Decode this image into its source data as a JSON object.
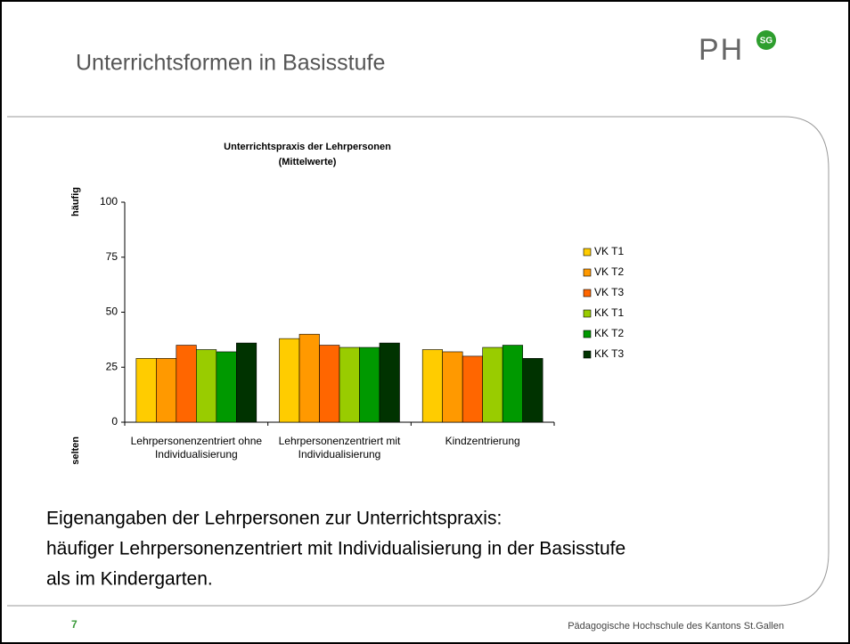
{
  "slide_title": "Unterrichtsformen in Basisstufe",
  "logo": {
    "text": "PH",
    "badge": "SG"
  },
  "chart_data": {
    "type": "bar",
    "title": [
      "Unterrichtspraxis der Lehrpersonen",
      "(Mittelwerte)"
    ],
    "y_label_top": "häufig",
    "y_label_bottom": "selten",
    "categories": [
      "Lehrpersonenzentriert ohne Individualisierung",
      "Lehrpersonenzentriert mit Individualisierung",
      "Kindzentrierung"
    ],
    "series": [
      {
        "name": "VK T1",
        "color": "#ffcc00",
        "values": [
          29,
          38,
          33
        ]
      },
      {
        "name": "VK T2",
        "color": "#ff9900",
        "values": [
          29,
          40,
          32
        ]
      },
      {
        "name": "VK T3",
        "color": "#ff6600",
        "values": [
          35,
          35,
          30
        ]
      },
      {
        "name": "KK T1",
        "color": "#99cc00",
        "values": [
          33,
          34,
          34
        ]
      },
      {
        "name": "KK T2",
        "color": "#009900",
        "values": [
          32,
          34,
          35
        ]
      },
      {
        "name": "KK T3",
        "color": "#003300",
        "values": [
          36,
          36,
          29
        ]
      }
    ],
    "ylim": [
      0,
      100
    ],
    "yticks": [
      0,
      25,
      50,
      75,
      100
    ],
    "grid": false,
    "legend": "right"
  },
  "caption": [
    "Eigenangaben der Lehrpersonen zur Unterrichtspraxis:",
    "häufiger Lehrpersonenzentriert mit Individualisierung in der Basisstufe",
    "als im Kindergarten."
  ],
  "footer": {
    "page": "7",
    "institution": "Pädagogische Hochschule des Kantons St.Gallen"
  }
}
